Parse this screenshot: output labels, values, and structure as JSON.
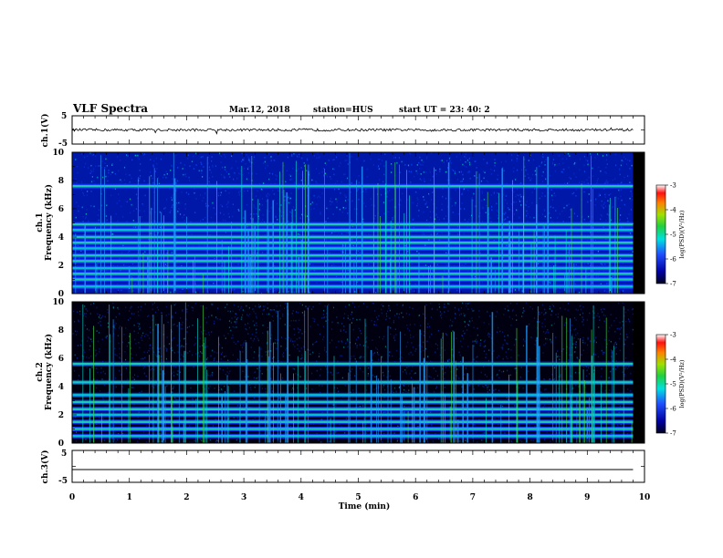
{
  "header": {
    "title": "VLF Spectra",
    "date": "Mar.12, 2018",
    "station": "station=HUS",
    "start": "start  UT =   23: 40: 2"
  },
  "chart_data": [
    {
      "type": "line",
      "panel": "ch1-waveform",
      "ylabel": "ch.1(V)",
      "ylim": [
        -5,
        5
      ],
      "yticks": [
        "5",
        "-5"
      ],
      "signal": "noisy trace near 0 V with occasional spikes",
      "baseline": 0
    },
    {
      "type": "heatmap",
      "panel": "ch1-spectrogram",
      "ylabel_line1": "ch.1",
      "ylabel_line2": "Frequency (kHz)",
      "ylim": [
        0,
        10
      ],
      "yticks": [
        "0",
        "2",
        "4",
        "6",
        "8",
        "10"
      ],
      "colorbar": {
        "label": "log(PSD)(V²/Hz)",
        "range": [
          -7,
          -3
        ],
        "ticks": [
          "-3",
          "-4",
          "-5",
          "-6",
          "-7"
        ]
      },
      "bands_khz": [
        0.5,
        1.0,
        1.4,
        1.8,
        2.3,
        2.7,
        3.2,
        3.6,
        4.0,
        4.5,
        4.9,
        7.6
      ]
    },
    {
      "type": "heatmap",
      "panel": "ch2-spectrogram",
      "ylabel_line1": "ch.2",
      "ylabel_line2": "Frequency (kHz)",
      "ylim": [
        0,
        10
      ],
      "yticks": [
        "0",
        "2",
        "4",
        "6",
        "8",
        "10"
      ],
      "colorbar": {
        "label": "log(PSD)(V²/Hz)",
        "range": [
          -7,
          -3
        ],
        "ticks": [
          "-3",
          "-4",
          "-5",
          "-6",
          "-7"
        ]
      },
      "bands_khz": [
        0.5,
        1.0,
        1.5,
        2.0,
        2.4,
        2.9,
        3.4,
        4.3,
        5.6
      ]
    },
    {
      "type": "line",
      "panel": "ch3-waveform",
      "ylabel": "ch.3(V)",
      "ylim": [
        -5,
        5
      ],
      "yticks": [
        "5",
        "-5"
      ],
      "signal": "flat line",
      "baseline": -1
    }
  ],
  "xaxis": {
    "label": "Time (min)",
    "range": [
      0,
      10
    ],
    "ticks": [
      "0",
      "1",
      "2",
      "3",
      "4",
      "5",
      "6",
      "7",
      "8",
      "9",
      "10"
    ]
  }
}
